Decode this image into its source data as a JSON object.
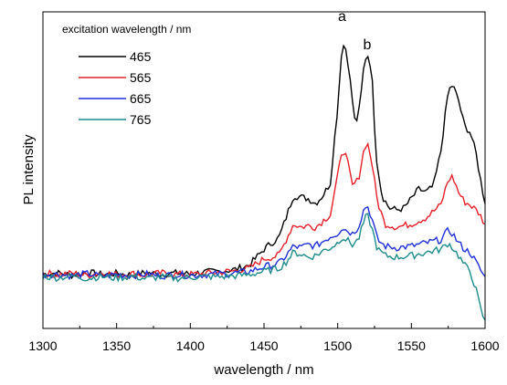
{
  "chart_data": {
    "type": "line",
    "title": "",
    "xlabel": "wavelength / nm",
    "ylabel": "PL intensity",
    "xlim": [
      1300,
      1600
    ],
    "ylim": [
      0,
      1
    ],
    "x_ticks": [
      1300,
      1350,
      1400,
      1450,
      1500,
      1550,
      1600
    ],
    "y_ticks_shown": false,
    "grid": false,
    "legend": {
      "title": "excitation wavelength / nm",
      "placement": "top-left"
    },
    "annotations": [
      {
        "text": "a",
        "x": 1503,
        "y": 0.96
      },
      {
        "text": "b",
        "x": 1520,
        "y": 0.87
      }
    ],
    "series": [
      {
        "name": "465",
        "color": "#000000",
        "points": [
          [
            1300,
            0.172
          ],
          [
            1310,
            0.175
          ],
          [
            1320,
            0.168
          ],
          [
            1330,
            0.177
          ],
          [
            1340,
            0.17
          ],
          [
            1350,
            0.174
          ],
          [
            1360,
            0.169
          ],
          [
            1370,
            0.176
          ],
          [
            1380,
            0.171
          ],
          [
            1390,
            0.175
          ],
          [
            1400,
            0.172
          ],
          [
            1410,
            0.178
          ],
          [
            1420,
            0.18
          ],
          [
            1430,
            0.186
          ],
          [
            1440,
            0.2
          ],
          [
            1450,
            0.25
          ],
          [
            1455,
            0.27
          ],
          [
            1460,
            0.285
          ],
          [
            1465,
            0.35
          ],
          [
            1470,
            0.42
          ],
          [
            1475,
            0.415
          ],
          [
            1480,
            0.41
          ],
          [
            1485,
            0.395
          ],
          [
            1490,
            0.42
          ],
          [
            1495,
            0.46
          ],
          [
            1500,
            0.7
          ],
          [
            1503,
            0.9
          ],
          [
            1506,
            0.88
          ],
          [
            1509,
            0.76
          ],
          [
            1512,
            0.64
          ],
          [
            1515,
            0.7
          ],
          [
            1518,
            0.84
          ],
          [
            1520,
            0.87
          ],
          [
            1523,
            0.82
          ],
          [
            1526,
            0.55
          ],
          [
            1530,
            0.42
          ],
          [
            1535,
            0.38
          ],
          [
            1540,
            0.375
          ],
          [
            1545,
            0.38
          ],
          [
            1550,
            0.41
          ],
          [
            1555,
            0.44
          ],
          [
            1560,
            0.43
          ],
          [
            1565,
            0.45
          ],
          [
            1570,
            0.56
          ],
          [
            1575,
            0.75
          ],
          [
            1578,
            0.77
          ],
          [
            1582,
            0.72
          ],
          [
            1586,
            0.64
          ],
          [
            1590,
            0.62
          ],
          [
            1594,
            0.55
          ],
          [
            1598,
            0.44
          ],
          [
            1600,
            0.4
          ]
        ]
      },
      {
        "name": "565",
        "color": "#e8202a",
        "points": [
          [
            1300,
            0.175
          ],
          [
            1310,
            0.17
          ],
          [
            1320,
            0.174
          ],
          [
            1330,
            0.168
          ],
          [
            1340,
            0.176
          ],
          [
            1350,
            0.17
          ],
          [
            1360,
            0.173
          ],
          [
            1370,
            0.168
          ],
          [
            1380,
            0.175
          ],
          [
            1390,
            0.171
          ],
          [
            1400,
            0.17
          ],
          [
            1410,
            0.174
          ],
          [
            1420,
            0.178
          ],
          [
            1430,
            0.182
          ],
          [
            1440,
            0.19
          ],
          [
            1450,
            0.22
          ],
          [
            1460,
            0.23
          ],
          [
            1465,
            0.28
          ],
          [
            1470,
            0.33
          ],
          [
            1475,
            0.32
          ],
          [
            1480,
            0.325
          ],
          [
            1485,
            0.32
          ],
          [
            1490,
            0.34
          ],
          [
            1495,
            0.36
          ],
          [
            1500,
            0.48
          ],
          [
            1503,
            0.57
          ],
          [
            1506,
            0.54
          ],
          [
            1510,
            0.45
          ],
          [
            1514,
            0.47
          ],
          [
            1518,
            0.57
          ],
          [
            1520,
            0.59
          ],
          [
            1523,
            0.53
          ],
          [
            1527,
            0.4
          ],
          [
            1532,
            0.33
          ],
          [
            1540,
            0.32
          ],
          [
            1550,
            0.33
          ],
          [
            1560,
            0.35
          ],
          [
            1570,
            0.39
          ],
          [
            1575,
            0.47
          ],
          [
            1578,
            0.48
          ],
          [
            1582,
            0.43
          ],
          [
            1586,
            0.4
          ],
          [
            1590,
            0.39
          ],
          [
            1595,
            0.37
          ],
          [
            1600,
            0.33
          ]
        ]
      },
      {
        "name": "665",
        "color": "#2030d8",
        "points": [
          [
            1300,
            0.17
          ],
          [
            1310,
            0.172
          ],
          [
            1320,
            0.166
          ],
          [
            1330,
            0.173
          ],
          [
            1340,
            0.165
          ],
          [
            1350,
            0.171
          ],
          [
            1360,
            0.167
          ],
          [
            1370,
            0.172
          ],
          [
            1380,
            0.166
          ],
          [
            1390,
            0.17
          ],
          [
            1400,
            0.168
          ],
          [
            1410,
            0.17
          ],
          [
            1420,
            0.172
          ],
          [
            1430,
            0.175
          ],
          [
            1440,
            0.18
          ],
          [
            1450,
            0.195
          ],
          [
            1460,
            0.205
          ],
          [
            1465,
            0.23
          ],
          [
            1470,
            0.26
          ],
          [
            1475,
            0.255
          ],
          [
            1480,
            0.265
          ],
          [
            1485,
            0.26
          ],
          [
            1490,
            0.275
          ],
          [
            1495,
            0.29
          ],
          [
            1500,
            0.3
          ],
          [
            1503,
            0.32
          ],
          [
            1506,
            0.31
          ],
          [
            1510,
            0.3
          ],
          [
            1514,
            0.32
          ],
          [
            1518,
            0.38
          ],
          [
            1520,
            0.39
          ],
          [
            1523,
            0.35
          ],
          [
            1527,
            0.28
          ],
          [
            1532,
            0.26
          ],
          [
            1540,
            0.255
          ],
          [
            1550,
            0.26
          ],
          [
            1560,
            0.27
          ],
          [
            1570,
            0.28
          ],
          [
            1575,
            0.31
          ],
          [
            1578,
            0.3
          ],
          [
            1582,
            0.27
          ],
          [
            1586,
            0.25
          ],
          [
            1590,
            0.24
          ],
          [
            1595,
            0.2
          ],
          [
            1600,
            0.16
          ]
        ]
      },
      {
        "name": "765",
        "color": "#1c8c8c",
        "points": [
          [
            1300,
            0.165
          ],
          [
            1310,
            0.16
          ],
          [
            1320,
            0.166
          ],
          [
            1330,
            0.158
          ],
          [
            1340,
            0.164
          ],
          [
            1350,
            0.159
          ],
          [
            1360,
            0.165
          ],
          [
            1370,
            0.157
          ],
          [
            1380,
            0.163
          ],
          [
            1390,
            0.158
          ],
          [
            1400,
            0.162
          ],
          [
            1410,
            0.164
          ],
          [
            1420,
            0.163
          ],
          [
            1430,
            0.166
          ],
          [
            1440,
            0.17
          ],
          [
            1450,
            0.18
          ],
          [
            1460,
            0.19
          ],
          [
            1465,
            0.21
          ],
          [
            1470,
            0.24
          ],
          [
            1475,
            0.235
          ],
          [
            1480,
            0.225
          ],
          [
            1485,
            0.23
          ],
          [
            1490,
            0.245
          ],
          [
            1495,
            0.255
          ],
          [
            1500,
            0.27
          ],
          [
            1503,
            0.29
          ],
          [
            1506,
            0.28
          ],
          [
            1510,
            0.265
          ],
          [
            1514,
            0.28
          ],
          [
            1518,
            0.34
          ],
          [
            1520,
            0.36
          ],
          [
            1523,
            0.32
          ],
          [
            1527,
            0.25
          ],
          [
            1532,
            0.23
          ],
          [
            1540,
            0.225
          ],
          [
            1550,
            0.23
          ],
          [
            1560,
            0.24
          ],
          [
            1570,
            0.25
          ],
          [
            1575,
            0.27
          ],
          [
            1578,
            0.255
          ],
          [
            1582,
            0.23
          ],
          [
            1586,
            0.2
          ],
          [
            1590,
            0.18
          ],
          [
            1594,
            0.12
          ],
          [
            1597,
            0.06
          ],
          [
            1600,
            0.02
          ]
        ]
      }
    ]
  }
}
